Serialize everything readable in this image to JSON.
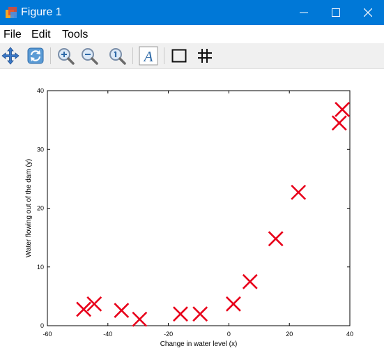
{
  "window": {
    "title": "Figure 1"
  },
  "menu": {
    "items": [
      "File",
      "Edit",
      "Tools"
    ]
  },
  "toolbar": {
    "tools": [
      "pan-icon",
      "rotate-icon",
      "zoom-in-icon",
      "zoom-out-icon",
      "zoom-reset-icon",
      "text-icon",
      "box-icon",
      "grid-icon"
    ],
    "text_tool_label": "A"
  },
  "colors": {
    "titlebar": "#0078d7",
    "marker": "#e8001a",
    "toolbar": "#f0f0f0"
  },
  "chart_data": {
    "type": "scatter",
    "marker": "x",
    "xlabel": "Change in water level (x)",
    "ylabel": "Water flowing out of the dam (y)",
    "xlim": [
      -60,
      40
    ],
    "ylim": [
      0,
      40
    ],
    "xticks": [
      "-60",
      "-40",
      "-20",
      "0",
      "20",
      "40"
    ],
    "yticks": [
      "0",
      "10",
      "20",
      "30",
      "40"
    ],
    "grid": false,
    "points": [
      {
        "x": -48,
        "y": 2.8
      },
      {
        "x": -44.5,
        "y": 3.7
      },
      {
        "x": -35.5,
        "y": 2.6
      },
      {
        "x": -29.5,
        "y": 1.1
      },
      {
        "x": -16,
        "y": 2.0
      },
      {
        "x": -9.5,
        "y": 2.0
      },
      {
        "x": 1.5,
        "y": 3.7
      },
      {
        "x": 7,
        "y": 7.5
      },
      {
        "x": 15.5,
        "y": 14.8
      },
      {
        "x": 23,
        "y": 22.7
      },
      {
        "x": 36.5,
        "y": 34.5
      },
      {
        "x": 37.5,
        "y": 36.8
      }
    ]
  }
}
